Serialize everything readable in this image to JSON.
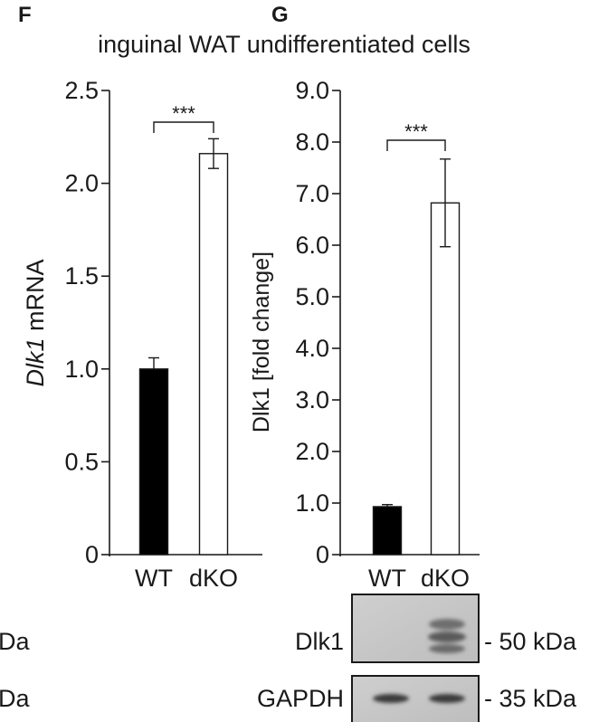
{
  "panels": {
    "f_label": "F",
    "g_label": "G",
    "title": "inguinal WAT undifferentiated cells"
  },
  "chart_data": [
    {
      "panel": "F",
      "type": "bar",
      "categories": [
        "WT",
        "dKO"
      ],
      "values": [
        1.0,
        2.16
      ],
      "errors": [
        0.06,
        0.08
      ],
      "fills": [
        "#000000",
        "#ffffff"
      ],
      "ylabel_italic": "Dlk1",
      "ylabel_rest": " mRNA",
      "ylim": [
        0,
        2.5
      ],
      "yticks": [
        "0",
        "0.5",
        "1.0",
        "1.5",
        "2.0",
        "2.5"
      ],
      "ytick_values": [
        0,
        0.5,
        1.0,
        1.5,
        2.0,
        2.5
      ],
      "significance": "***"
    },
    {
      "panel": "G",
      "type": "bar",
      "categories": [
        "WT",
        "dKO"
      ],
      "values": [
        0.93,
        6.82
      ],
      "errors": [
        0.04,
        0.85
      ],
      "fills": [
        "#000000",
        "#ffffff"
      ],
      "ylabel": "Dlk1 [fold change]",
      "ylim": [
        0,
        9.0
      ],
      "yticks": [
        "0",
        "1.0",
        "2.0",
        "3.0",
        "4.0",
        "5.0",
        "6.0",
        "7.0",
        "8.0",
        "9.0"
      ],
      "ytick_values": [
        0,
        1,
        2,
        3,
        4,
        5,
        6,
        7,
        8,
        9
      ],
      "significance": "***"
    }
  ],
  "blot": {
    "rows": [
      {
        "label": "Dlk1",
        "marker": "- 50 kDa"
      },
      {
        "label": "GAPDH",
        "marker": "- 35 kDa"
      }
    ],
    "left_cutoff": [
      "Da",
      "Da"
    ]
  }
}
